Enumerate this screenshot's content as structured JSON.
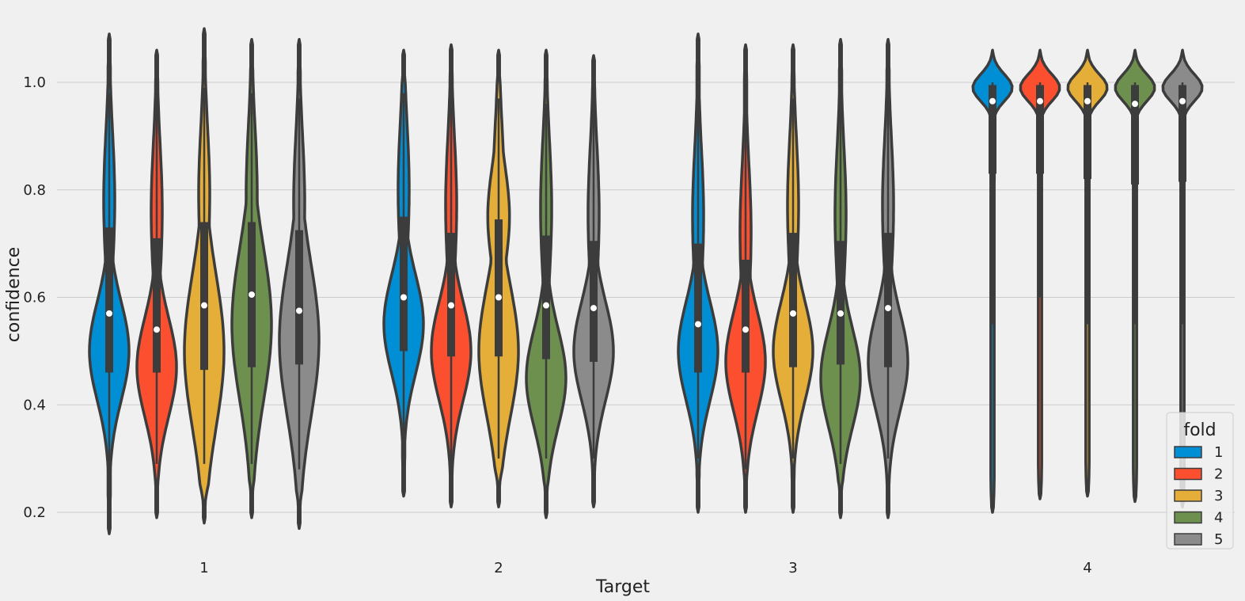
{
  "chart_data": {
    "type": "violin",
    "title": "",
    "xlabel": "Target",
    "ylabel": "confidence",
    "ylim": [
      0.13,
      1.12
    ],
    "yticks": [
      0.2,
      0.4,
      0.6,
      0.8,
      1.0
    ],
    "ytick_labels": [
      "0.2",
      "0.4",
      "0.6",
      "0.8",
      "1.0"
    ],
    "grid": "horizontal",
    "categories": [
      "1",
      "2",
      "3",
      "4"
    ],
    "legend": {
      "title": "fold",
      "position": "lower-right",
      "entries": [
        "1",
        "2",
        "3",
        "4",
        "5"
      ]
    },
    "colors": {
      "1": "#008fd5",
      "2": "#fc4f30",
      "3": "#e5ae38",
      "4": "#6d904f",
      "5": "#8b8b8b",
      "outline": "#3c3c3c",
      "median": "#ffffff"
    },
    "series": [
      {
        "name": "1",
        "groups": [
          {
            "min": 0.16,
            "q1": 0.46,
            "median": 0.57,
            "q3": 0.73,
            "max": 1.09,
            "wlo": 0.27,
            "whi": 0.98,
            "mode": "low",
            "peak": 0.5
          },
          {
            "min": 0.23,
            "q1": 0.5,
            "median": 0.6,
            "q3": 0.75,
            "max": 1.06,
            "wlo": 0.31,
            "whi": 0.98,
            "mode": "mid",
            "peak": 0.55
          },
          {
            "min": 0.2,
            "q1": 0.46,
            "median": 0.55,
            "q3": 0.7,
            "max": 1.09,
            "wlo": 0.3,
            "whi": 0.97,
            "mode": "low",
            "peak": 0.5
          },
          {
            "min": 0.2,
            "q1": 0.83,
            "median": 0.965,
            "q3": 0.995,
            "max": 1.06,
            "wlo": 0.55,
            "whi": 1.0,
            "mode": "top",
            "peak": 0.99
          }
        ]
      },
      {
        "name": "2",
        "groups": [
          {
            "min": 0.19,
            "q1": 0.46,
            "median": 0.54,
            "q3": 0.71,
            "max": 1.06,
            "wlo": 0.29,
            "whi": 0.97,
            "mode": "low",
            "peak": 0.47
          },
          {
            "min": 0.21,
            "q1": 0.49,
            "median": 0.585,
            "q3": 0.72,
            "max": 1.07,
            "wlo": 0.29,
            "whi": 0.98,
            "mode": "mid",
            "peak": 0.5
          },
          {
            "min": 0.2,
            "q1": 0.46,
            "median": 0.54,
            "q3": 0.67,
            "max": 1.07,
            "wlo": 0.28,
            "whi": 0.95,
            "mode": "low",
            "peak": 0.48
          },
          {
            "min": 0.225,
            "q1": 0.83,
            "median": 0.965,
            "q3": 0.995,
            "max": 1.06,
            "wlo": 0.6,
            "whi": 1.0,
            "mode": "top",
            "peak": 0.99
          }
        ]
      },
      {
        "name": "3",
        "groups": [
          {
            "min": 0.18,
            "q1": 0.465,
            "median": 0.585,
            "q3": 0.74,
            "max": 1.1,
            "wlo": 0.29,
            "whi": 0.99,
            "mode": "wide",
            "peak": 0.5
          },
          {
            "min": 0.21,
            "q1": 0.49,
            "median": 0.6,
            "q3": 0.745,
            "max": 1.06,
            "wlo": 0.3,
            "whi": 0.97,
            "mode": "upper",
            "peak": 0.5
          },
          {
            "min": 0.2,
            "q1": 0.47,
            "median": 0.57,
            "q3": 0.72,
            "max": 1.07,
            "wlo": 0.3,
            "whi": 0.97,
            "mode": "low",
            "peak": 0.5
          },
          {
            "min": 0.23,
            "q1": 0.82,
            "median": 0.965,
            "q3": 0.995,
            "max": 1.06,
            "wlo": 0.55,
            "whi": 1.0,
            "mode": "top",
            "peak": 0.99
          }
        ]
      },
      {
        "name": "4",
        "groups": [
          {
            "min": 0.19,
            "q1": 0.47,
            "median": 0.605,
            "q3": 0.74,
            "max": 1.08,
            "wlo": 0.29,
            "whi": 0.98,
            "mode": "wide",
            "peak": 0.55
          },
          {
            "min": 0.19,
            "q1": 0.485,
            "median": 0.585,
            "q3": 0.715,
            "max": 1.06,
            "wlo": 0.3,
            "whi": 0.96,
            "mode": "low",
            "peak": 0.45
          },
          {
            "min": 0.19,
            "q1": 0.475,
            "median": 0.57,
            "q3": 0.705,
            "max": 1.08,
            "wlo": 0.29,
            "whi": 0.98,
            "mode": "low",
            "peak": 0.45
          },
          {
            "min": 0.22,
            "q1": 0.81,
            "median": 0.96,
            "q3": 0.995,
            "max": 1.06,
            "wlo": 0.55,
            "whi": 1.0,
            "mode": "top",
            "peak": 0.99
          }
        ]
      },
      {
        "name": "5",
        "groups": [
          {
            "min": 0.17,
            "q1": 0.475,
            "median": 0.575,
            "q3": 0.725,
            "max": 1.08,
            "wlo": 0.28,
            "whi": 0.97,
            "mode": "wide",
            "peak": 0.52
          },
          {
            "min": 0.21,
            "q1": 0.48,
            "median": 0.58,
            "q3": 0.705,
            "max": 1.05,
            "wlo": 0.3,
            "whi": 0.97,
            "mode": "low",
            "peak": 0.5
          },
          {
            "min": 0.19,
            "q1": 0.47,
            "median": 0.58,
            "q3": 0.72,
            "max": 1.08,
            "wlo": 0.3,
            "whi": 0.98,
            "mode": "low",
            "peak": 0.48
          },
          {
            "min": 0.21,
            "q1": 0.815,
            "median": 0.965,
            "q3": 0.995,
            "max": 1.06,
            "wlo": 0.55,
            "whi": 1.0,
            "mode": "top",
            "peak": 0.99
          }
        ]
      }
    ]
  }
}
